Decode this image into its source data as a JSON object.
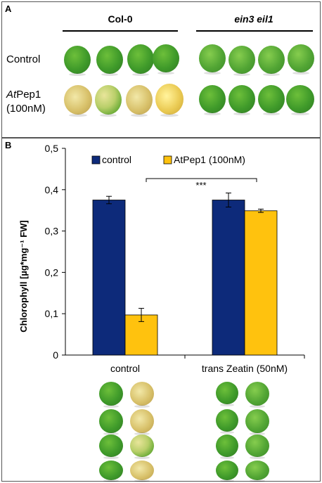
{
  "panel_a": {
    "letter": "A",
    "group_headers": [
      "Col-0",
      "ein3 eil1"
    ],
    "row_labels": {
      "control": "Control",
      "atpep_prefix": "At",
      "atpep_suffix": "Pep1",
      "atpep_conc": "(100nM)"
    }
  },
  "panel_b": {
    "letter": "B",
    "significance": "***"
  },
  "chart_data": {
    "type": "bar",
    "categories": [
      "control",
      "trans Zeatin (50nM)"
    ],
    "series": [
      {
        "name": "control",
        "values": [
          0.375,
          0.375
        ],
        "errors": [
          0.009,
          0.017
        ],
        "color": "#0d2a7a"
      },
      {
        "name": "AtPep1 (100nM)",
        "values": [
          0.097,
          0.349
        ],
        "errors": [
          0.016,
          0.004
        ],
        "color": "#ffc20e"
      }
    ],
    "xlabel": "",
    "ylabel": "Chlorophyll [µg*mg⁻¹ FW]",
    "ylim": [
      0,
      0.5
    ],
    "yticks": [
      "0",
      "0,1",
      "0,2",
      "0,3",
      "0,4",
      "0,5"
    ],
    "legend_position": "top",
    "grid": false
  }
}
